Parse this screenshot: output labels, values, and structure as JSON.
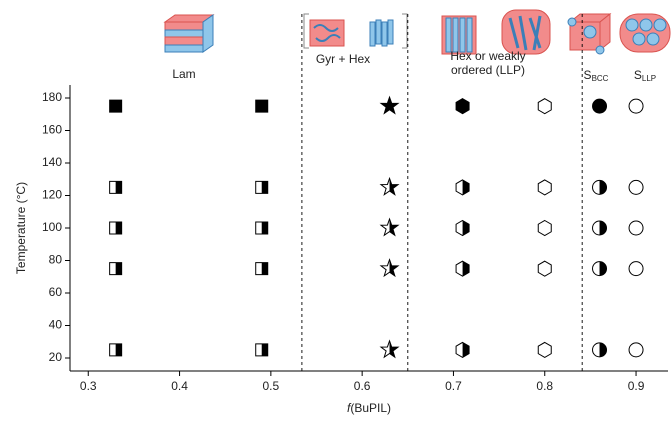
{
  "chart_data": {
    "type": "scatter",
    "xlabel": [
      "f",
      "(BuPIL)"
    ],
    "ylabel": "Temperature (°C)",
    "xlim": [
      0.28,
      0.935
    ],
    "ylim": [
      12,
      188
    ],
    "xticks": [
      0.3,
      0.4,
      0.5,
      0.6,
      0.7,
      0.8,
      0.9
    ],
    "yticks": [
      20,
      40,
      60,
      80,
      100,
      120,
      140,
      160,
      180
    ],
    "boundaries": [
      0.534,
      0.65,
      0.841
    ],
    "regions": [
      {
        "text": "Lam"
      },
      {
        "text": "Gyr + Hex"
      },
      {
        "text": "Hex or weakly",
        "text2": "ordered (LLP)"
      },
      {
        "text": "S",
        "sub": "BCC"
      },
      {
        "text": "S",
        "sub": "LLP"
      }
    ],
    "series": [
      {
        "marker": "square",
        "fill": "full",
        "x": [
          0.33,
          0.49
        ],
        "y": [
          175,
          175
        ]
      },
      {
        "marker": "square",
        "fill": "half",
        "x": [
          0.33,
          0.33,
          0.33,
          0.33,
          0.49,
          0.49,
          0.49,
          0.49
        ],
        "y": [
          125,
          100,
          75,
          25,
          125,
          100,
          75,
          25
        ]
      },
      {
        "marker": "star",
        "fill": "full",
        "x": [
          0.63
        ],
        "y": [
          175
        ]
      },
      {
        "marker": "star",
        "fill": "half",
        "x": [
          0.63,
          0.63,
          0.63,
          0.63
        ],
        "y": [
          125,
          100,
          75,
          25
        ]
      },
      {
        "marker": "hexagon",
        "fill": "full",
        "x": [
          0.71
        ],
        "y": [
          175
        ]
      },
      {
        "marker": "hexagon",
        "fill": "half",
        "x": [
          0.71,
          0.71,
          0.71,
          0.71
        ],
        "y": [
          125,
          100,
          75,
          25
        ]
      },
      {
        "marker": "hexagon",
        "fill": "open",
        "x": [
          0.8,
          0.8,
          0.8,
          0.8,
          0.8
        ],
        "y": [
          175,
          125,
          100,
          75,
          25
        ]
      },
      {
        "marker": "circle",
        "fill": "full",
        "x": [
          0.86
        ],
        "y": [
          175
        ]
      },
      {
        "marker": "circle",
        "fill": "half",
        "x": [
          0.86,
          0.86,
          0.86,
          0.86
        ],
        "y": [
          125,
          100,
          75,
          25
        ]
      },
      {
        "marker": "circle",
        "fill": "open",
        "x": [
          0.9,
          0.9,
          0.9,
          0.9,
          0.9
        ],
        "y": [
          175,
          125,
          100,
          75,
          25
        ]
      }
    ]
  }
}
